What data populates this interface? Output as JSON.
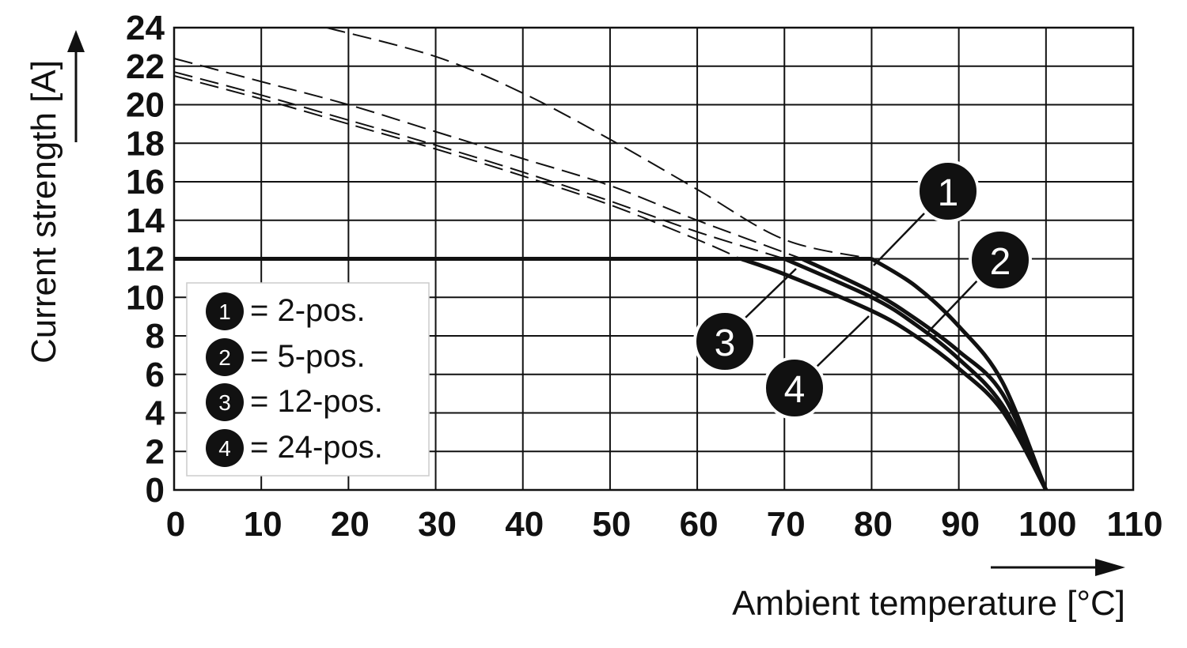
{
  "chart_data": {
    "type": "line",
    "xlabel": "Ambient temperature [°C]",
    "ylabel": "Current strength [A]",
    "xlim": [
      0,
      110
    ],
    "ylim": [
      0,
      24
    ],
    "x_ticks": [
      0,
      10,
      20,
      30,
      40,
      50,
      60,
      70,
      80,
      90,
      100,
      110
    ],
    "y_ticks": [
      0,
      2,
      4,
      6,
      8,
      10,
      12,
      14,
      16,
      18,
      20,
      22,
      24
    ],
    "x_tick_labels": [
      "0",
      "10",
      "20",
      "30",
      "40",
      "50",
      "60",
      "70",
      "80",
      "90",
      "100",
      "110"
    ],
    "y_tick_labels": [
      "0",
      "2",
      "4",
      "6",
      "8",
      "10",
      "12",
      "14",
      "16",
      "18",
      "20",
      "22",
      "24"
    ],
    "grid": true,
    "legend_position": "bottom-left",
    "rated_current": 12,
    "max_temperature": 100,
    "series": [
      {
        "name": "2-pos.",
        "marker": "1",
        "theoretical_dashed": [
          [
            17.5,
            24
          ],
          [
            30,
            22.5
          ],
          [
            40,
            20.6
          ],
          [
            50,
            18.2
          ],
          [
            60,
            15.6
          ],
          [
            70,
            13.0
          ],
          [
            80,
            12.0
          ]
        ],
        "derating": [
          [
            0,
            12
          ],
          [
            80,
            12
          ],
          [
            85,
            10.6
          ],
          [
            90,
            8.5
          ],
          [
            95,
            5.6
          ],
          [
            100,
            0
          ]
        ]
      },
      {
        "name": "5-pos.",
        "marker": "2",
        "theoretical_dashed": [
          [
            0,
            22.4
          ],
          [
            10,
            21.2
          ],
          [
            20,
            20.0
          ],
          [
            30,
            18.6
          ],
          [
            40,
            17.2
          ],
          [
            50,
            15.8
          ],
          [
            60,
            14.0
          ],
          [
            72,
            12.0
          ]
        ],
        "derating": [
          [
            0,
            12
          ],
          [
            72,
            12
          ],
          [
            80,
            10.3
          ],
          [
            85,
            8.9
          ],
          [
            90,
            7.2
          ],
          [
            95,
            5.0
          ],
          [
            100,
            0
          ]
        ]
      },
      {
        "name": "12-pos.",
        "marker": "3",
        "theoretical_dashed": [
          [
            0,
            21.7
          ],
          [
            10,
            20.5
          ],
          [
            20,
            19.2
          ],
          [
            30,
            17.9
          ],
          [
            40,
            16.5
          ],
          [
            50,
            15.0
          ],
          [
            60,
            13.4
          ],
          [
            70,
            12.0
          ]
        ],
        "derating": [
          [
            0,
            12
          ],
          [
            70,
            12
          ],
          [
            80,
            10.0
          ],
          [
            85,
            8.6
          ],
          [
            90,
            6.8
          ],
          [
            95,
            4.4
          ],
          [
            100,
            0
          ]
        ]
      },
      {
        "name": "24-pos.",
        "marker": "4",
        "theoretical_dashed": [
          [
            0,
            21.5
          ],
          [
            10,
            20.3
          ],
          [
            20,
            19.0
          ],
          [
            30,
            17.7
          ],
          [
            40,
            16.3
          ],
          [
            50,
            14.8
          ],
          [
            60,
            13.0
          ],
          [
            65,
            12.0
          ]
        ],
        "derating": [
          [
            0,
            12
          ],
          [
            65,
            12
          ],
          [
            70,
            11.2
          ],
          [
            80,
            9.3
          ],
          [
            85,
            8.0
          ],
          [
            90,
            6.3
          ],
          [
            95,
            4.1
          ],
          [
            100,
            0
          ]
        ]
      }
    ]
  },
  "legend": {
    "items": [
      {
        "marker": "1",
        "label": "= 2-pos."
      },
      {
        "marker": "2",
        "label": "= 5-pos."
      },
      {
        "marker": "3",
        "label": "= 12-pos."
      },
      {
        "marker": "4",
        "label": "= 24-pos."
      }
    ]
  },
  "callouts": [
    {
      "marker": "1"
    },
    {
      "marker": "2"
    },
    {
      "marker": "3"
    },
    {
      "marker": "4"
    }
  ],
  "colors": {
    "line": "#111111",
    "grid": "#111111",
    "badge_fill": "#111111",
    "badge_text": "#ffffff",
    "background": "#ffffff"
  }
}
